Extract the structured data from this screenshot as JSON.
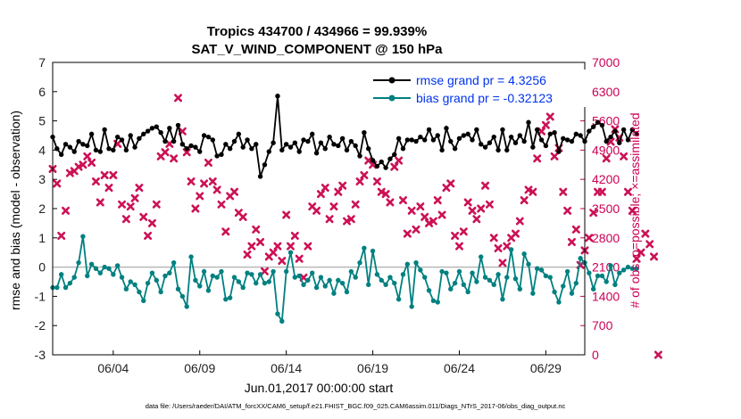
{
  "chart_data": {
    "type": "line",
    "title": "Tropics 434700 / 434966 = 99.939%",
    "subtitle": "SAT_V_WIND_COMPONENT @ 150 hPa",
    "xlabel": "Jun.01,2017 00:00:00 start",
    "ylabel": "rmse and bias (model - observation)",
    "ylabel_right": "# of obs: o=possible; ×=assimilated",
    "ylim": [
      -3,
      7
    ],
    "ylim_right": [
      0,
      7000
    ],
    "xlim": [
      0,
      30.75
    ],
    "yticks": [
      "-3",
      "-2",
      "-1",
      "0",
      "1",
      "2",
      "3",
      "4",
      "5",
      "6",
      "7"
    ],
    "yticks_right": [
      "0",
      "700",
      "1400",
      "2100",
      "2800",
      "3500",
      "4200",
      "4900",
      "5600",
      "6300",
      "7000"
    ],
    "xticks": [
      {
        "pos": 3.5,
        "label": "06/04"
      },
      {
        "pos": 8.5,
        "label": "06/09"
      },
      {
        "pos": 13.5,
        "label": "06/14"
      },
      {
        "pos": 18.5,
        "label": "06/19"
      },
      {
        "pos": 23.5,
        "label": "06/24"
      },
      {
        "pos": 28.5,
        "label": "06/29"
      }
    ],
    "footnote": "data file: /Users/raeder/DAI/ATM_forcXX/CAM6_setup/f.e21.FHIST_BGC.f09_025.CAM6assim.011/Diags_NTrS_2017-06/obs_diag_output.nc",
    "series": [
      {
        "name": "rmse grand pr = 4.3256",
        "color": "#000000",
        "axis": "left",
        "marker": "dot",
        "x_start": 0,
        "x_step": 0.25,
        "values": [
          4.45,
          4.05,
          3.85,
          4.2,
          4.1,
          3.95,
          4.3,
          4.2,
          4.15,
          4.55,
          4.0,
          3.95,
          4.7,
          4.05,
          4.0,
          4.45,
          4.35,
          4.0,
          4.5,
          4.1,
          4.4,
          4.55,
          4.65,
          4.75,
          4.8,
          4.6,
          4.3,
          4.75,
          4.3,
          4.85,
          4.2,
          4.05,
          4.15,
          4.1,
          3.95,
          4.5,
          4.45,
          4.35,
          3.8,
          3.85,
          4.2,
          4.05,
          4.3,
          4.55,
          4.1,
          4.35,
          4.05,
          4.2,
          3.1,
          3.5,
          3.95,
          4.25,
          5.85,
          4.0,
          4.2,
          4.1,
          4.25,
          3.95,
          4.35,
          4.3,
          4.55,
          3.9,
          4.25,
          4.05,
          4.45,
          4.2,
          4.15,
          4.4,
          4.0,
          4.3,
          4.15,
          3.8,
          4.6,
          4.05,
          3.65,
          3.45,
          3.6,
          3.4,
          3.7,
          3.85,
          4.4,
          4.05,
          4.35,
          4.35,
          4.3,
          4.45,
          4.35,
          4.7,
          4.35,
          4.5,
          4.0,
          4.75,
          4.3,
          4.05,
          4.4,
          4.5,
          4.55,
          4.35,
          4.7,
          4.2,
          4.1,
          4.25,
          4.45,
          4.0,
          4.7,
          4.0,
          4.45,
          4.25,
          4.5,
          4.3,
          4.95,
          4.1,
          4.7,
          4.35,
          4.15,
          4.55,
          4.6,
          3.95,
          4.4,
          4.35,
          4.3,
          4.55,
          4.5,
          4.3,
          4.65,
          4.8,
          4.95,
          4.85,
          4.3,
          4.45,
          4.65,
          4.25,
          4.7,
          4.35,
          4.7,
          4.55
        ]
      },
      {
        "name": "bias grand pr = -0.32123",
        "color": "#008080",
        "axis": "left",
        "marker": "dot",
        "x_start": 0,
        "x_step": 0.25,
        "values": [
          -0.7,
          -0.7,
          -0.25,
          -0.7,
          -0.55,
          -0.35,
          0.15,
          1.05,
          -0.3,
          0.1,
          -0.05,
          -0.2,
          0.0,
          -0.05,
          -0.25,
          0.05,
          -0.35,
          -0.75,
          -0.5,
          -0.6,
          -0.85,
          -1.15,
          -0.55,
          -0.2,
          -0.45,
          -0.85,
          -0.3,
          -0.2,
          0.15,
          -0.75,
          -1.0,
          -1.35,
          0.35,
          -0.45,
          -0.65,
          -0.15,
          -0.8,
          -0.3,
          -0.35,
          -0.15,
          -1.1,
          -1.05,
          -0.35,
          -0.5,
          -0.7,
          -0.2,
          -0.25,
          -0.55,
          -0.25,
          -0.55,
          -0.5,
          -0.15,
          -1.6,
          -1.85,
          -0.15,
          0.5,
          -0.35,
          -0.3,
          -0.6,
          -0.45,
          -0.2,
          -0.7,
          -0.35,
          -0.65,
          -0.45,
          -0.9,
          -0.45,
          -0.55,
          -0.85,
          -0.15,
          -0.35,
          0.15,
          0.65,
          -0.6,
          0.55,
          -0.25,
          -0.45,
          -0.6,
          -0.35,
          -0.55,
          -1.1,
          -0.25,
          0.1,
          -1.35,
          0.15,
          -0.1,
          -0.35,
          -0.8,
          -1.15,
          -1.2,
          -0.15,
          -0.2,
          -0.75,
          -0.55,
          -0.15,
          -0.6,
          -0.85,
          -0.2,
          -0.5,
          0.35,
          -0.35,
          -0.45,
          -0.6,
          -0.25,
          -1.1,
          -0.35,
          0.6,
          -0.4,
          -0.75,
          0.45,
          0.1,
          -0.9,
          -0.05,
          -0.1,
          -0.3,
          -0.35,
          -0.85,
          -1.2,
          -0.65,
          -0.15,
          -0.9,
          -0.55,
          0.3,
          0.15,
          -0.2,
          -0.75,
          -0.3,
          -0.3,
          -0.5,
          0.05,
          -0.6,
          -0.2,
          -0.1,
          0.0,
          -0.05,
          -0.05
        ]
      },
      {
        "name": "observations assimilated",
        "color": "#cc1155",
        "axis": "right",
        "marker": "x",
        "x_start": 0.0,
        "x_step": 0.25,
        "values": [
          4450,
          4100,
          2850,
          3450,
          4350,
          4400,
          4500,
          4550,
          4750,
          4600,
          4150,
          3650,
          4300,
          4000,
          4300,
          5050,
          3600,
          3250,
          3550,
          3750,
          4000,
          3300,
          2850,
          3150,
          3600,
          4750,
          4850,
          5050,
          4700,
          6150,
          5350,
          4850,
          4150,
          3500,
          3800,
          4100,
          4600,
          4150,
          3950,
          3600,
          2950,
          3800,
          3900,
          3400,
          3300,
          2400,
          2600,
          3000,
          2700,
          2000,
          2350,
          2450,
          2600,
          2250,
          3350,
          2600,
          2850,
          2300,
          1850,
          2600,
          3550,
          3450,
          3850,
          4000,
          3250,
          3550,
          3900,
          4050,
          3200,
          3250,
          3600,
          4150,
          4300,
          4650,
          4550,
          4150,
          3900,
          3850,
          3650,
          4500,
          4650,
          3700,
          2900,
          3450,
          3000,
          3550,
          3300,
          3150,
          3200,
          3700,
          3350,
          4000,
          4100,
          2850,
          2600,
          2950,
          3650,
          3450,
          3250,
          3500,
          4050,
          3600,
          2800,
          2550,
          2200,
          2600,
          2800,
          2900,
          3200,
          3700,
          3950,
          3900,
          4700,
          5350,
          5500,
          5700,
          4750,
          4950,
          3900,
          3450,
          2700,
          3000,
          2150,
          2500,
          2800,
          3400,
          3900,
          3900,
          4700,
          5100,
          5400,
          5200,
          4750,
          3900,
          3450,
          2300,
          2450,
          2900,
          2650,
          2350,
          0
        ]
      }
    ]
  }
}
